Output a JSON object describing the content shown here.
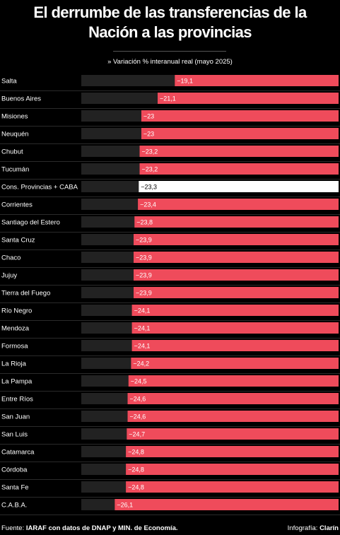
{
  "header": {
    "title_line1": "El derrumbe de las transferencias de la",
    "title_line2": "Nación a las provincias",
    "subtitle": "» Variación % interanual real (mayo 2025)"
  },
  "footer": {
    "source_label": "Fuente:",
    "source_text": "IARAF con datos de DNAP y MIN. de Economía.",
    "credit_label": "Infografía:",
    "credit_text": "Clarín"
  },
  "colors": {
    "bar": "#ef4b5b",
    "highlight_bar": "#ffffff",
    "track": "#222222",
    "background": "#000000"
  },
  "chart_data": {
    "type": "bar",
    "orientation": "horizontal",
    "title": "El derrumbe de las transferencias de la Nación a las provincias",
    "subtitle": "» Variación % interanual real (mayo 2025)",
    "xlim": [
      -30,
      0
    ],
    "grid": false,
    "legend": "none",
    "highlight_category": "Cons. Provincias + CABA",
    "categories": [
      "Salta",
      "Buenos Aires",
      "Misiones",
      "Neuquén",
      "Chubut",
      "Tucumán",
      "Cons. Provincias + CABA",
      "Corrientes",
      "Santiago del Estero",
      "Santa Cruz",
      "Chaco",
      "Jujuy",
      "Tierra del Fuego",
      "Río Negro",
      "Mendoza",
      "Formosa",
      "La Rioja",
      "La Pampa",
      "Entre Ríos",
      "San Juan",
      "San Luis",
      "Catamarca",
      "Córdoba",
      "Santa Fe",
      "C.A.B.A."
    ],
    "values": [
      -19.1,
      -21.1,
      -23,
      -23,
      -23.2,
      -23.2,
      -23.3,
      -23.4,
      -23.8,
      -23.9,
      -23.9,
      -23.9,
      -23.9,
      -24.1,
      -24.1,
      -24.1,
      -24.2,
      -24.5,
      -24.6,
      -24.6,
      -24.7,
      -24.8,
      -24.8,
      -24.8,
      -26.1
    ],
    "data_labels": [
      "−19,1",
      "−21,1",
      "−23",
      "−23",
      "−23,2",
      "−23,2",
      "−23,3",
      "−23,4",
      "−23,8",
      "−23,9",
      "−23,9",
      "−23,9",
      "−23,9",
      "−24,1",
      "−24,1",
      "−24,1",
      "−24,2",
      "−24,5",
      "−24,6",
      "−24,6",
      "−24,7",
      "−24,8",
      "−24,8",
      "−24,8",
      "−26,1"
    ]
  }
}
